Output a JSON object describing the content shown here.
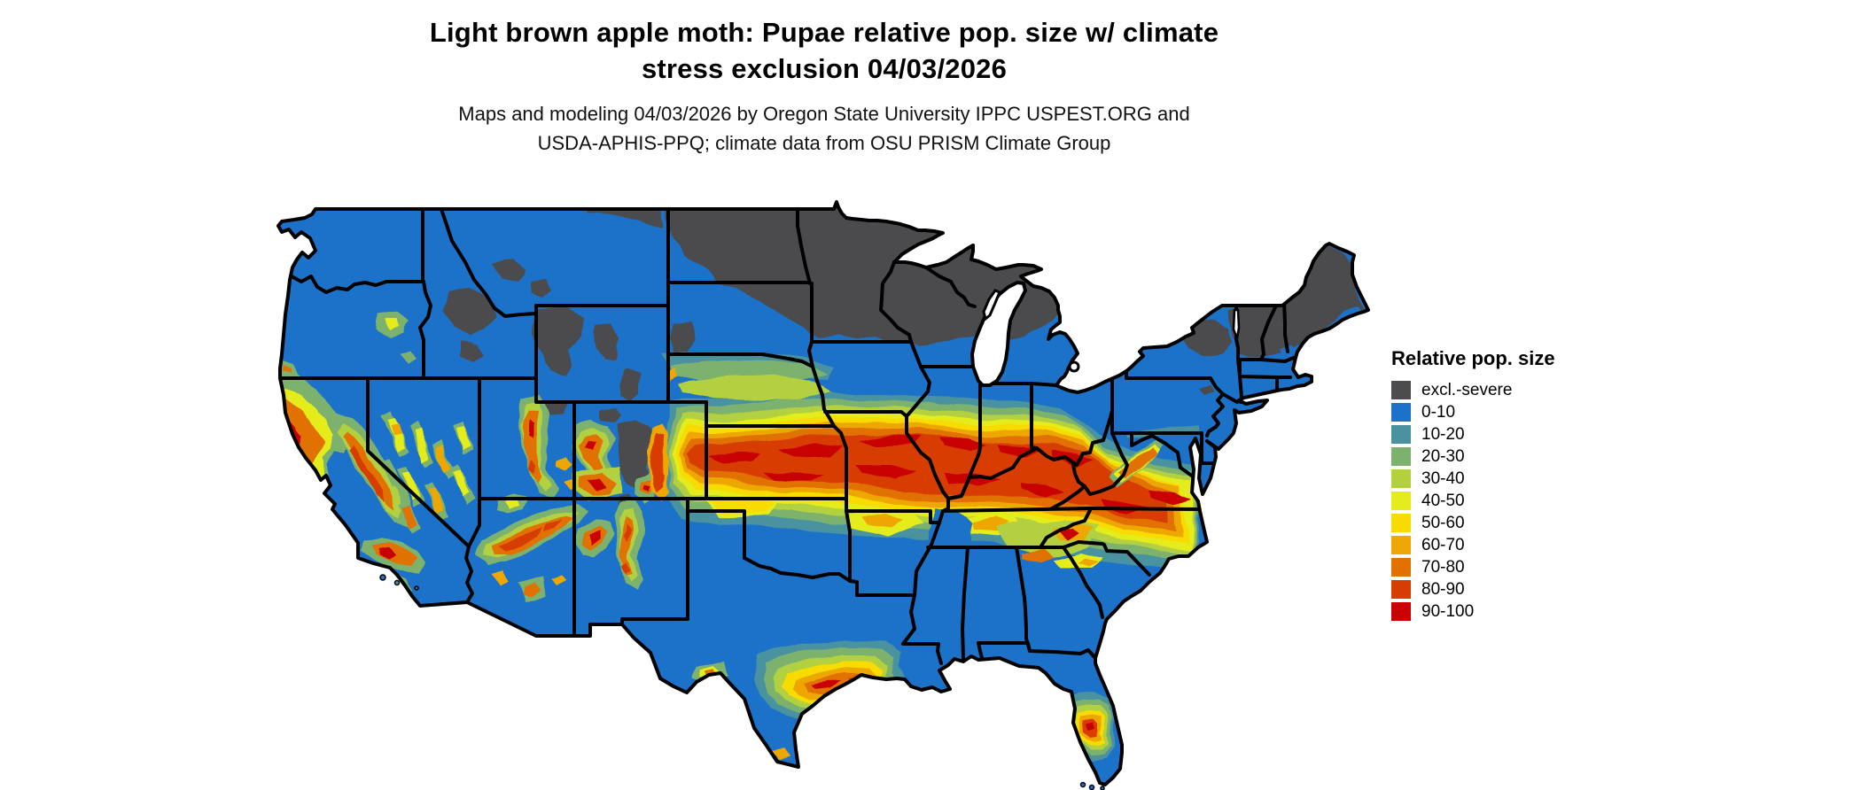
{
  "title": {
    "line1": "Light brown apple moth: Pupae relative pop. size w/ climate",
    "line2": "stress exclusion 04/03/2026"
  },
  "subtitle": {
    "line1": "Maps and modeling 04/03/2026 by Oregon State University IPPC USPEST.ORG and",
    "line2": "USDA-APHIS-PPQ; climate data from OSU PRISM Climate Group"
  },
  "legend": {
    "title": "Relative pop. size",
    "items": [
      {
        "key": "excl",
        "label": "excl.-severe",
        "color": "#4c4c4e"
      },
      {
        "key": "b0_10",
        "label": "0-10",
        "color": "#1c72c8"
      },
      {
        "key": "b10_20",
        "label": "10-20",
        "color": "#4a92a0"
      },
      {
        "key": "b20_30",
        "label": "20-30",
        "color": "#7cb26e"
      },
      {
        "key": "b30_40",
        "label": "30-40",
        "color": "#b3d03f"
      },
      {
        "key": "b40_50",
        "label": "40-50",
        "color": "#e5ec1c"
      },
      {
        "key": "b50_60",
        "label": "50-60",
        "color": "#f8db00"
      },
      {
        "key": "b60_70",
        "label": "60-70",
        "color": "#eea704"
      },
      {
        "key": "b70_80",
        "label": "70-80",
        "color": "#e17100"
      },
      {
        "key": "b80_90",
        "label": "80-90",
        "color": "#d73c00"
      },
      {
        "key": "b90_100",
        "label": "90-100",
        "color": "#c90000"
      }
    ]
  },
  "chart_data": {
    "type": "heatmap",
    "title": "Light brown apple moth: Pupae relative pop. size w/ climate stress exclusion 04/03/2026",
    "region": "Continental United States",
    "legend_title": "Relative pop. size",
    "categories": [
      "excl.-severe",
      "0-10",
      "10-20",
      "20-30",
      "30-40",
      "40-50",
      "50-60",
      "60-70",
      "70-80",
      "80-90",
      "90-100"
    ],
    "colors": [
      "#4c4c4e",
      "#1c72c8",
      "#4a92a0",
      "#7cb26e",
      "#b3d03f",
      "#e5ec1c",
      "#f8db00",
      "#eea704",
      "#e17100",
      "#d73c00",
      "#c90000"
    ],
    "legend_position": "right"
  }
}
